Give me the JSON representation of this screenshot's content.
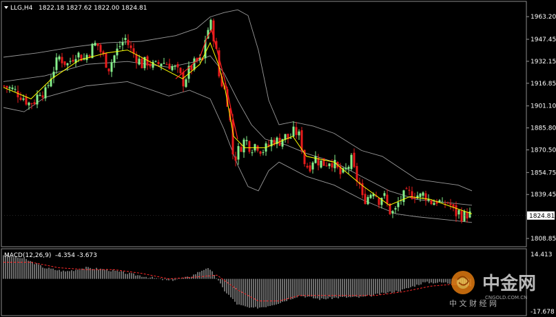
{
  "header": {
    "symbol": "LLG,H4",
    "ohlc": "1822.18 1827.62 1822.00 1824.81"
  },
  "macd_header": {
    "label": "MACD(12,26,9)",
    "values": "-4.354 -3.673"
  },
  "price_axis_ticks": [
    "1963.20",
    "1947.45",
    "1932.15",
    "1916.85",
    "1901.10",
    "1885.80",
    "1870.50",
    "1854.75",
    "1839.45",
    "1808.85"
  ],
  "current_price": "1824.81",
  "macd_axis_ticks": [
    "14.413",
    "-17.678"
  ],
  "watermark": {
    "brand": "中金网",
    "sub": "中 文 财 经 网",
    "small": "CNGOLD.COM.CN"
  },
  "colors": {
    "background": "#000000",
    "bull": "#86f08c",
    "bear": "#e81b1b",
    "ma_fast": "#ffff00",
    "ma_slow": "#ff2020",
    "bollinger": "#9a9a9a",
    "macd_hist": "#d8d8d8",
    "macd_signal": "#ff2a2a",
    "current_price_box": "#ffffff"
  },
  "chart_data": [
    {
      "type": "candlestick",
      "title": "LLG,H4",
      "ylim": [
        1806.0,
        1970.0
      ],
      "y_ticks": [
        1963.2,
        1947.45,
        1932.15,
        1916.85,
        1901.1,
        1885.8,
        1870.5,
        1854.75,
        1839.45,
        1808.85
      ],
      "last_close": 1824.81,
      "close_path": [
        [
          0,
          1915
        ],
        [
          14,
          1912
        ],
        [
          26,
          1908
        ],
        [
          36,
          1903
        ],
        [
          45,
          1905
        ],
        [
          52,
          1912
        ],
        [
          60,
          1910
        ],
        [
          70,
          1925
        ],
        [
          80,
          1935
        ],
        [
          92,
          1930
        ],
        [
          104,
          1938
        ],
        [
          116,
          1934
        ],
        [
          125,
          1940
        ],
        [
          134,
          1945
        ],
        [
          144,
          1935
        ],
        [
          152,
          1928
        ],
        [
          160,
          1936
        ],
        [
          168,
          1943
        ],
        [
          176,
          1948
        ],
        [
          184,
          1940
        ],
        [
          192,
          1935
        ],
        [
          200,
          1930
        ],
        [
          208,
          1932
        ],
        [
          218,
          1928
        ],
        [
          228,
          1932
        ],
        [
          240,
          1930
        ],
        [
          250,
          1926
        ],
        [
          260,
          1918
        ],
        [
          270,
          1927
        ],
        [
          280,
          1932
        ],
        [
          288,
          1932
        ],
        [
          292,
          1948
        ],
        [
          297,
          1956
        ],
        [
          301,
          1958
        ],
        [
          304,
          1950
        ],
        [
          308,
          1938
        ],
        [
          312,
          1922
        ],
        [
          316,
          1917
        ],
        [
          320,
          1912
        ],
        [
          324,
          1905
        ],
        [
          328,
          1890
        ],
        [
          332,
          1868
        ],
        [
          336,
          1866
        ],
        [
          342,
          1872
        ],
        [
          350,
          1878
        ],
        [
          358,
          1872
        ],
        [
          366,
          1875
        ],
        [
          374,
          1870
        ],
        [
          382,
          1872
        ],
        [
          390,
          1878
        ],
        [
          398,
          1876
        ],
        [
          406,
          1880
        ],
        [
          414,
          1878
        ],
        [
          422,
          1884
        ],
        [
          428,
          1880
        ],
        [
          432,
          1873
        ],
        [
          436,
          1862
        ],
        [
          442,
          1858
        ],
        [
          450,
          1866
        ],
        [
          458,
          1862
        ],
        [
          466,
          1861
        ],
        [
          474,
          1864
        ],
        [
          482,
          1858
        ],
        [
          490,
          1852
        ],
        [
          498,
          1858
        ],
        [
          504,
          1863
        ],
        [
          510,
          1852
        ],
        [
          516,
          1846
        ],
        [
          520,
          1836
        ],
        [
          528,
          1838
        ],
        [
          536,
          1843
        ],
        [
          544,
          1836
        ],
        [
          550,
          1840
        ],
        [
          556,
          1832
        ],
        [
          562,
          1826
        ],
        [
          568,
          1828
        ],
        [
          574,
          1836
        ],
        [
          580,
          1838
        ],
        [
          588,
          1840
        ],
        [
          596,
          1840
        ],
        [
          604,
          1838
        ],
        [
          610,
          1840
        ],
        [
          616,
          1836
        ],
        [
          622,
          1834
        ],
        [
          630,
          1836
        ],
        [
          636,
          1830
        ],
        [
          642,
          1835
        ],
        [
          648,
          1832
        ],
        [
          654,
          1826
        ],
        [
          660,
          1827
        ],
        [
          666,
          1824
        ],
        [
          672,
          1826
        ],
        [
          678,
          1824.81
        ]
      ],
      "bands": {
        "upper": [
          [
            0,
            1935
          ],
          [
            50,
            1938
          ],
          [
            100,
            1942
          ],
          [
            150,
            1945
          ],
          [
            200,
            1946
          ],
          [
            250,
            1950
          ],
          [
            280,
            1955
          ],
          [
            300,
            1963
          ],
          [
            320,
            1966
          ],
          [
            340,
            1968
          ],
          [
            355,
            1964
          ],
          [
            370,
            1940
          ],
          [
            385,
            1905
          ],
          [
            400,
            1888
          ],
          [
            420,
            1890
          ],
          [
            450,
            1887
          ],
          [
            480,
            1882
          ],
          [
            500,
            1876
          ],
          [
            520,
            1870
          ],
          [
            550,
            1866
          ],
          [
            575,
            1858
          ],
          [
            600,
            1850
          ],
          [
            630,
            1848
          ],
          [
            660,
            1846
          ],
          [
            680,
            1842
          ]
        ],
        "middle": [
          [
            0,
            1918
          ],
          [
            60,
            1922
          ],
          [
            120,
            1930
          ],
          [
            180,
            1932
          ],
          [
            240,
            1928
          ],
          [
            280,
            1932
          ],
          [
            300,
            1936
          ],
          [
            320,
            1924
          ],
          [
            340,
            1905
          ],
          [
            360,
            1888
          ],
          [
            380,
            1878
          ],
          [
            410,
            1874
          ],
          [
            440,
            1868
          ],
          [
            480,
            1862
          ],
          [
            520,
            1852
          ],
          [
            560,
            1842
          ],
          [
            600,
            1836
          ],
          [
            640,
            1834
          ],
          [
            680,
            1832
          ]
        ],
        "lower": [
          [
            0,
            1900
          ],
          [
            30,
            1897
          ],
          [
            60,
            1907
          ],
          [
            120,
            1915
          ],
          [
            180,
            1918
          ],
          [
            240,
            1908
          ],
          [
            270,
            1912
          ],
          [
            300,
            1906
          ],
          [
            320,
            1885
          ],
          [
            340,
            1860
          ],
          [
            355,
            1845
          ],
          [
            370,
            1842
          ],
          [
            385,
            1856
          ],
          [
            400,
            1862
          ],
          [
            440,
            1852
          ],
          [
            480,
            1846
          ],
          [
            520,
            1836
          ],
          [
            550,
            1830
          ],
          [
            570,
            1826
          ],
          [
            600,
            1824
          ],
          [
            640,
            1822
          ],
          [
            680,
            1820
          ]
        ]
      },
      "ma_fast": [
        [
          0,
          1914
        ],
        [
          40,
          1906
        ],
        [
          70,
          1920
        ],
        [
          110,
          1933
        ],
        [
          150,
          1938
        ],
        [
          180,
          1940
        ],
        [
          220,
          1930
        ],
        [
          260,
          1920
        ],
        [
          285,
          1930
        ],
        [
          300,
          1945
        ],
        [
          312,
          1930
        ],
        [
          322,
          1912
        ],
        [
          334,
          1880
        ],
        [
          350,
          1872
        ],
        [
          380,
          1872
        ],
        [
          420,
          1880
        ],
        [
          440,
          1866
        ],
        [
          480,
          1862
        ],
        [
          520,
          1846
        ],
        [
          560,
          1832
        ],
        [
          590,
          1838
        ],
        [
          620,
          1836
        ],
        [
          650,
          1831
        ],
        [
          680,
          1826
        ]
      ],
      "ma_slow": [
        [
          250,
          1920
        ],
        [
          270,
          1928
        ],
        [
          285,
          1935
        ],
        [
          295,
          1948
        ],
        [
          302,
          1954
        ],
        [
          310,
          1940
        ],
        [
          322,
          1918
        ],
        [
          332,
          1895
        ],
        [
          340,
          1878
        ]
      ]
    },
    {
      "type": "macd",
      "title": "MACD(12,26,9)",
      "ylim": [
        -17.678,
        14.413
      ],
      "y_ticks": [
        14.413,
        -17.678
      ],
      "main_last": -4.354,
      "signal_last": -3.673,
      "histogram_path": [
        [
          0,
          13
        ],
        [
          30,
          11
        ],
        [
          60,
          6
        ],
        [
          90,
          4
        ],
        [
          120,
          6
        ],
        [
          150,
          5
        ],
        [
          180,
          3
        ],
        [
          210,
          1
        ],
        [
          240,
          -1
        ],
        [
          270,
          1
        ],
        [
          295,
          6
        ],
        [
          305,
          3
        ],
        [
          320,
          -6
        ],
        [
          340,
          -14
        ],
        [
          360,
          -16
        ],
        [
          380,
          -15
        ],
        [
          400,
          -13
        ],
        [
          430,
          -9
        ],
        [
          460,
          -11
        ],
        [
          490,
          -10
        ],
        [
          520,
          -10
        ],
        [
          550,
          -8
        ],
        [
          580,
          -6
        ],
        [
          610,
          -2
        ],
        [
          640,
          -2
        ],
        [
          680,
          -4
        ]
      ],
      "signal_path": [
        [
          0,
          9
        ],
        [
          40,
          9
        ],
        [
          80,
          6
        ],
        [
          120,
          5
        ],
        [
          160,
          5
        ],
        [
          200,
          3
        ],
        [
          240,
          0
        ],
        [
          280,
          1
        ],
        [
          310,
          2
        ],
        [
          340,
          -6
        ],
        [
          370,
          -12
        ],
        [
          400,
          -12
        ],
        [
          430,
          -9
        ],
        [
          460,
          -9
        ],
        [
          500,
          -9
        ],
        [
          540,
          -9
        ],
        [
          580,
          -7
        ],
        [
          620,
          -4
        ],
        [
          650,
          -3
        ],
        [
          680,
          -3.6
        ]
      ]
    }
  ]
}
